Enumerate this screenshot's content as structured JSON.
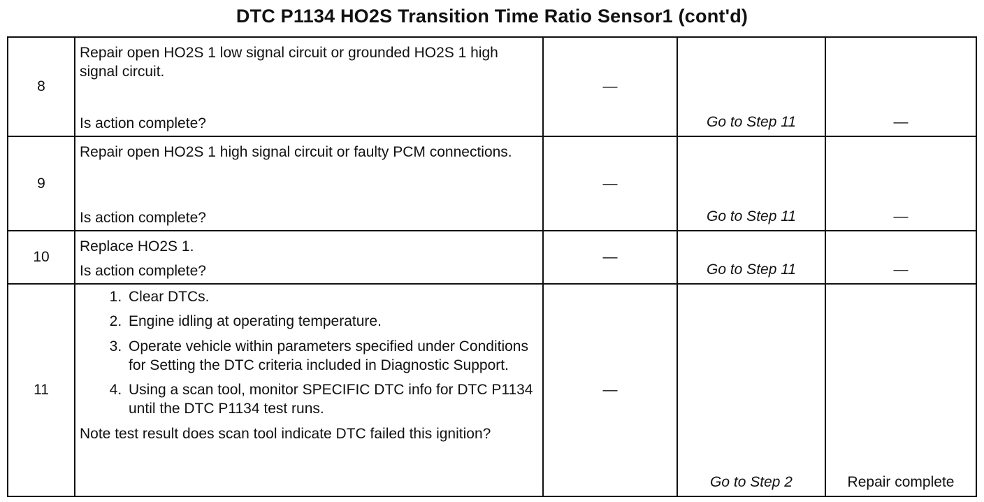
{
  "title": "DTC P1134 HO2S Transition Time Ratio Sensor1 (cont'd)",
  "rows": [
    {
      "step": "8",
      "action": "Repair open HO2S 1 low signal circuit or grounded HO2S 1 high signal circuit.",
      "question": "Is action complete?",
      "value": "—",
      "yes": "Go to Step 11",
      "no": "—"
    },
    {
      "step": "9",
      "action": "Repair open HO2S 1 high signal circuit or faulty PCM connections.",
      "question": "Is action complete?",
      "value": "—",
      "yes": "Go to Step 11",
      "no": "—"
    },
    {
      "step": "10",
      "action": "Replace HO2S 1.",
      "question": "Is action complete?",
      "value": "—",
      "yes": "Go to Step 11",
      "no": "—"
    },
    {
      "step": "11",
      "items": [
        "Clear DTCs.",
        "Engine idling at operating temperature.",
        "Operate vehicle within parameters specified under Conditions for Setting the DTC criteria included in Diagnostic Support.",
        "Using a scan tool, monitor SPECIFIC DTC info for DTC P1134 until the DTC P1134 test runs."
      ],
      "question": "Note test result does scan tool indicate DTC failed this ignition?",
      "value": "—",
      "yes": "Go to Step 2",
      "no": "Repair complete"
    }
  ]
}
